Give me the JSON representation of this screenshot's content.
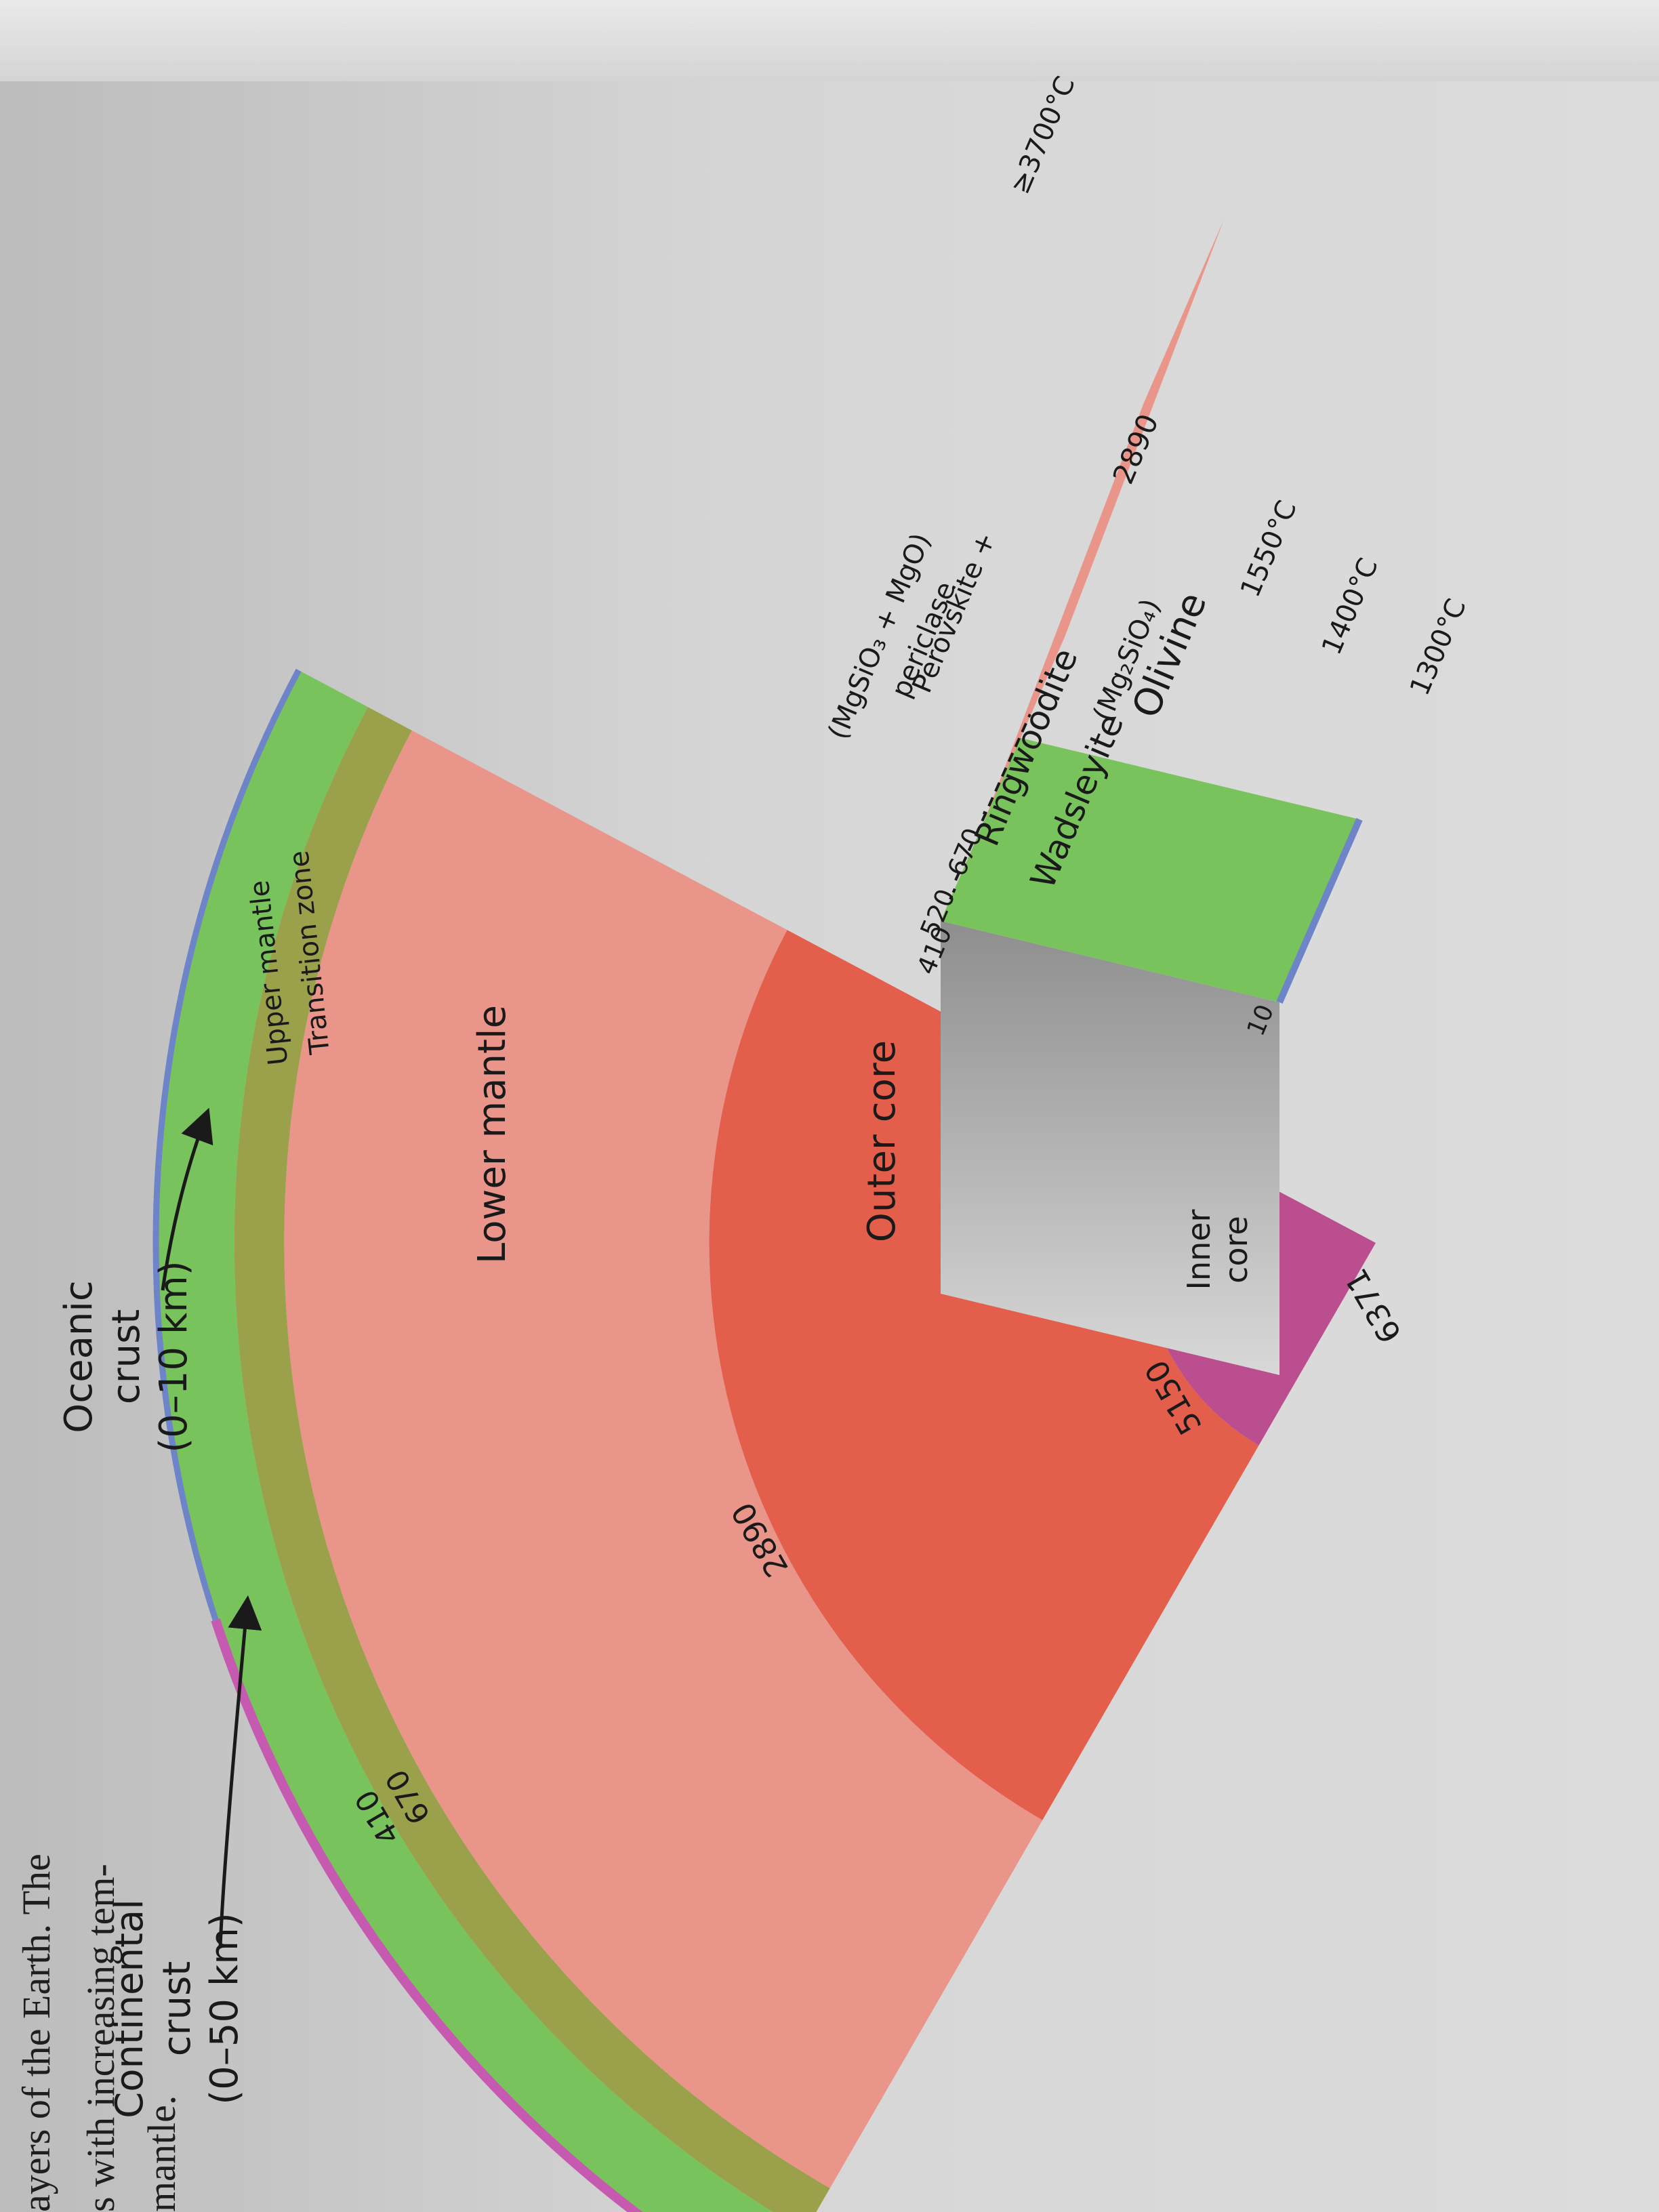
{
  "caption": {
    "lines": [
      "ayers of the Earth. The",
      "s with increasing tem-",
      "mantle."
    ]
  },
  "labels": {
    "continental_crust": [
      "Continental",
      "crust",
      "(0–50 km)"
    ],
    "oceanic_crust": [
      "Oceanic",
      "crust",
      "(0–10 km)"
    ],
    "upper_mantle": "Upper mantle",
    "transition_zone": "Transition zone",
    "lower_mantle": "Lower mantle",
    "outer_core": "Outer core",
    "inner_core": [
      "Inner",
      "core"
    ]
  },
  "depths": {
    "d410": "410",
    "d670": "670",
    "d2890": "2890",
    "d5150": "5150",
    "d6371": "6371"
  },
  "inset": {
    "top_depth": "10",
    "olivine": "Olivine",
    "olivine_formula": "(Mg₂SiO₄)",
    "wadsleyite": "Wadsleyite",
    "ringwoodite": "Ringwoodite",
    "pv_lines": [
      "Perovskite +",
      "periclase",
      "(MgSiO₃ + MgO)"
    ],
    "depth_410": "410",
    "depth_520": "520",
    "depth_670": "670",
    "depth_2890": "2890",
    "temps": [
      "1300°C",
      "1400°C",
      "1550°C",
      "≥3700°C"
    ]
  },
  "colors": {
    "crust_continental": "#c65ab0",
    "crust_oceanic": "#6e84c8",
    "upper_mantle": "#79c35c",
    "transition_zone": "#9aa14a",
    "lower_mantle": "#e9958a",
    "outer_core": "#e35e4b",
    "inner_core": "#bb4e8e",
    "inset_side": "#b0b0b0"
  }
}
